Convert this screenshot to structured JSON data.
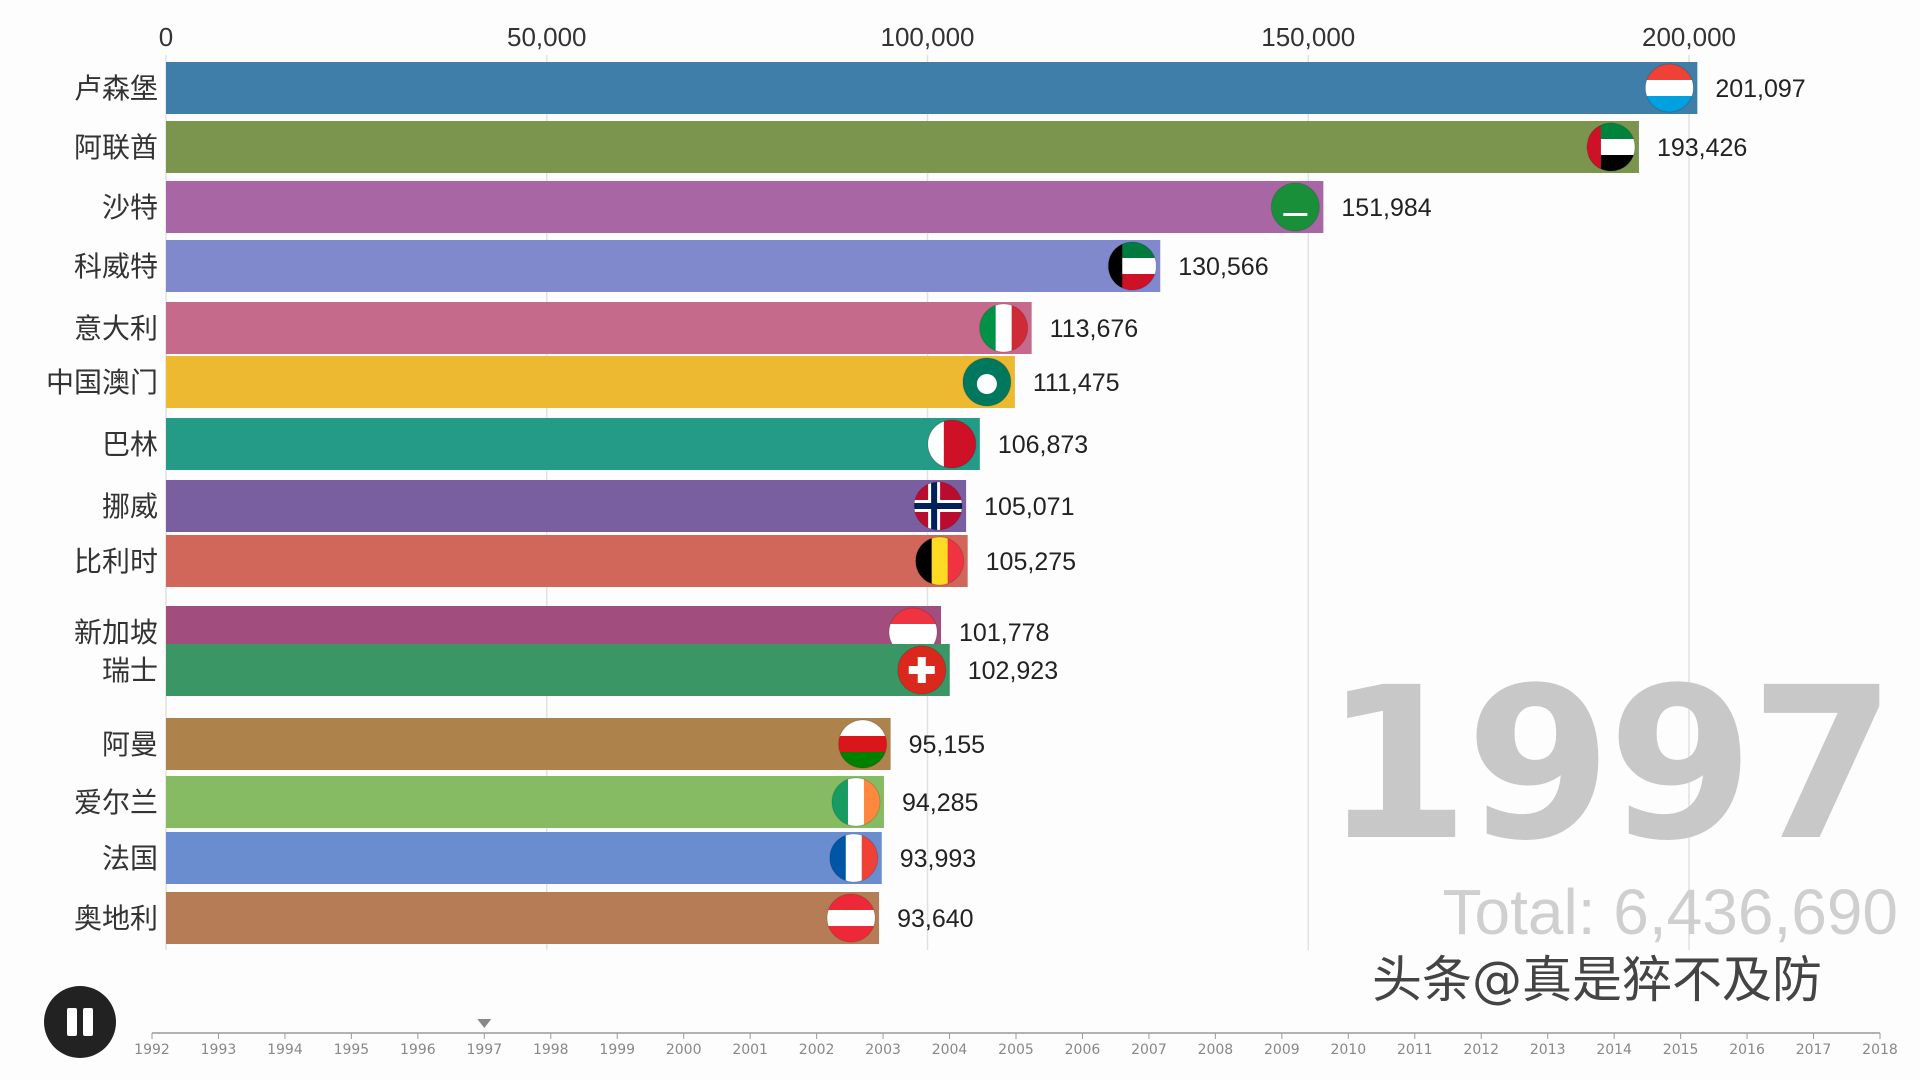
{
  "chart_data": {
    "type": "bar",
    "orientation": "horizontal",
    "categories": [
      "卢森堡",
      "阿联酋",
      "沙特",
      "科威特",
      "意大利",
      "中国澳门",
      "巴林",
      "挪威",
      "比利时",
      "新加坡",
      "瑞士",
      "阿曼",
      "爱尔兰",
      "法国",
      "奥地利"
    ],
    "values": [
      201097,
      193426,
      151984,
      130566,
      113676,
      111475,
      106873,
      105071,
      105275,
      101778,
      102923,
      95155,
      94285,
      93993,
      93640
    ],
    "value_labels": [
      "201,097",
      "193,426",
      "151,984",
      "130,566",
      "113,676",
      "111,475",
      "106,873",
      "105,071",
      "105,275",
      "101,778",
      "102,923",
      "95,155",
      "94,285",
      "93,993",
      "93,640"
    ],
    "colors": [
      "#3f7ea8",
      "#7b944e",
      "#a866a4",
      "#7f89cb",
      "#c66a8c",
      "#ecb930",
      "#239b87",
      "#7a5fa0",
      "#d0675a",
      "#a14e7f",
      "#3a9664",
      "#ad824b",
      "#86bb63",
      "#6a8dd0",
      "#b57c55"
    ],
    "flags": [
      "luxembourg-flag-icon",
      "uae-flag-icon",
      "saudi-flag-icon",
      "kuwait-flag-icon",
      "italy-flag-icon",
      "macau-flag-icon",
      "bahrain-flag-icon",
      "norway-flag-icon",
      "belgium-flag-icon",
      "singapore-flag-icon",
      "switzerland-flag-icon",
      "oman-flag-icon",
      "ireland-flag-icon",
      "france-flag-icon",
      "austria-flag-icon"
    ],
    "xlim": [
      0,
      200000
    ],
    "x_ticks": [
      0,
      50000,
      100000,
      150000,
      200000
    ],
    "x_tick_labels": [
      "0",
      "50,000",
      "100,000",
      "150,000",
      "200,000"
    ],
    "grid": true,
    "legend": "none"
  },
  "year": "1997",
  "total": "Total: 6,436,690",
  "watermark": "头条@真是猝不及防",
  "timeline": {
    "years": [
      "1992",
      "1993",
      "1994",
      "1995",
      "1996",
      "1997",
      "1998",
      "1999",
      "2000",
      "2001",
      "2002",
      "2003",
      "2004",
      "2005",
      "2006",
      "2007",
      "2008",
      "2009",
      "2010",
      "2011",
      "2012",
      "2013",
      "2014",
      "2015",
      "2016",
      "2017",
      "2018"
    ],
    "current": "1997"
  }
}
